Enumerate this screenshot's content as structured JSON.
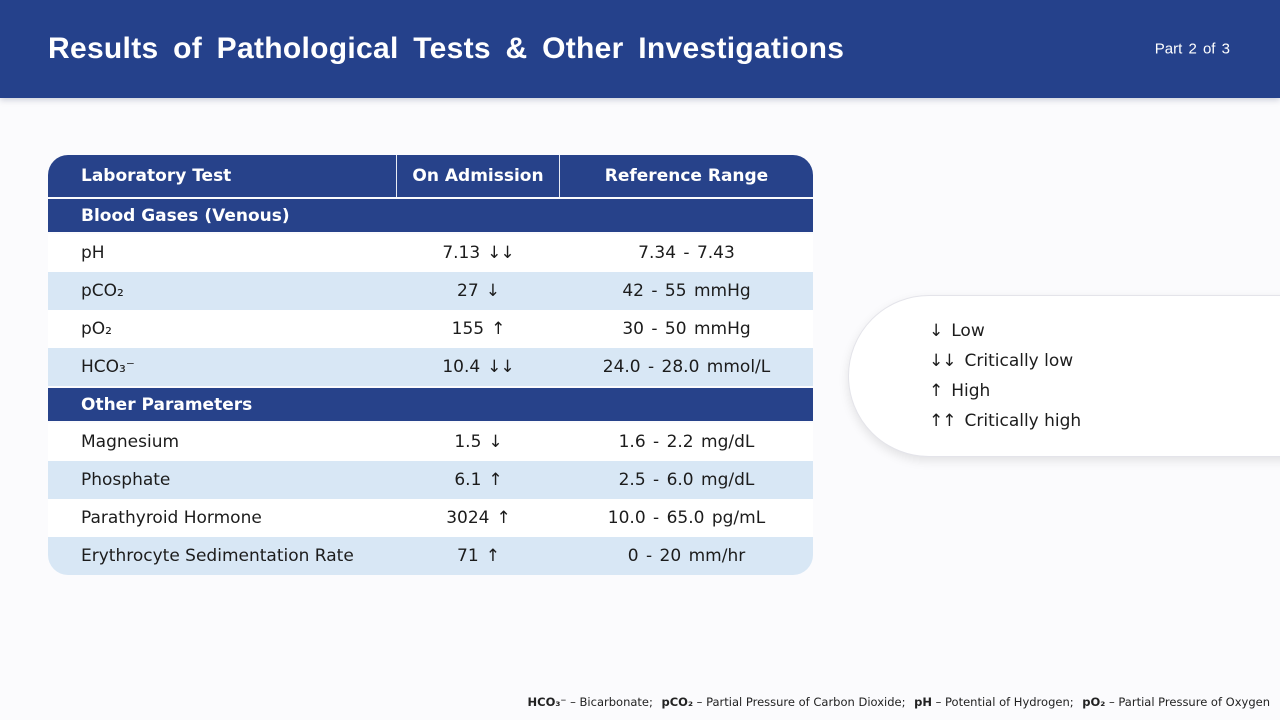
{
  "header": {
    "title": "Results of Pathological Tests & Other Investigations",
    "part_label": "Part 2 of 3"
  },
  "table": {
    "columns": [
      "Laboratory Test",
      "On Admission",
      "Reference Range"
    ],
    "sections": [
      {
        "title": "Blood Gases (Venous)",
        "rows": [
          {
            "test": "pH",
            "value": "7.13",
            "flag": "↓↓",
            "range": "7.34 - 7.43"
          },
          {
            "test": "pCO₂",
            "value": "27",
            "flag": "↓",
            "range": "42 - 55 mmHg"
          },
          {
            "test": "pO₂",
            "value": "155",
            "flag": "↑",
            "range": "30 - 50 mmHg"
          },
          {
            "test": "HCO₃⁻",
            "value": "10.4",
            "flag": "↓↓",
            "range": "24.0 - 28.0 mmol/L"
          }
        ]
      },
      {
        "title": "Other Parameters",
        "rows": [
          {
            "test": "Magnesium",
            "value": "1.5",
            "flag": "↓",
            "range": "1.6 - 2.2 mg/dL"
          },
          {
            "test": "Phosphate",
            "value": "6.1",
            "flag": "↑",
            "range": "2.5 - 6.0 mg/dL"
          },
          {
            "test": "Parathyroid Hormone",
            "value": "3024",
            "flag": "↑",
            "range": "10.0 - 65.0 pg/mL"
          },
          {
            "test": "Erythrocyte Sedimentation Rate",
            "value": "71",
            "flag": "↑",
            "range": "0 - 20 mm/hr"
          }
        ]
      }
    ]
  },
  "legend": {
    "items": [
      {
        "symbol": "↓",
        "label": "Low"
      },
      {
        "symbol": "↓↓",
        "label": "Critically low"
      },
      {
        "symbol": "↑",
        "label": "High"
      },
      {
        "symbol": "↑↑",
        "label": "Critically high"
      }
    ]
  },
  "footnote": {
    "dash": "–",
    "separator": ";",
    "items": [
      {
        "term": "HCO₃⁻",
        "definition": "Bicarbonate"
      },
      {
        "term": "pCO₂",
        "definition": "Partial Pressure of Carbon Dioxide"
      },
      {
        "term": "pH",
        "definition": "Potential of Hydrogen"
      },
      {
        "term": "pO₂",
        "definition": "Partial Pressure of Oxygen"
      }
    ]
  },
  "colors": {
    "banner_blue": "#25418B",
    "table_header_blue": "#27428A",
    "row_light_blue": "#D8E7F5",
    "page_background": "#FBFBFD",
    "text_dark": "#1C1C1C"
  }
}
